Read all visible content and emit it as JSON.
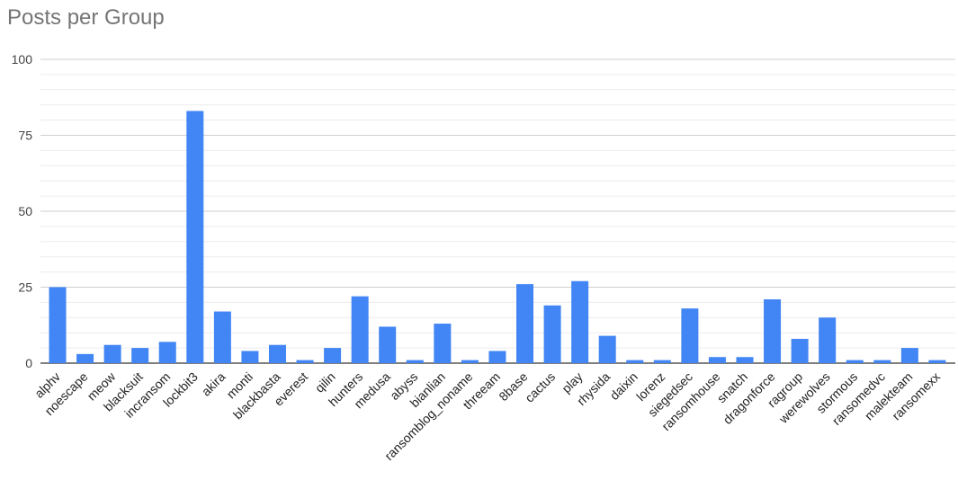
{
  "chart_data": {
    "type": "bar",
    "title": "Posts per Group",
    "xlabel": "",
    "ylabel": "",
    "ylim": [
      0,
      100
    ],
    "yticks": [
      0,
      25,
      50,
      75,
      100
    ],
    "grid": true,
    "bar_color": "#4285f4",
    "categories": [
      "alphv",
      "noescape",
      "meow",
      "blacksuit",
      "incransom",
      "lockbit3",
      "akira",
      "monti",
      "blackbasta",
      "everest",
      "qilin",
      "hunters",
      "medusa",
      "abyss",
      "bianlian",
      "ransomblog_noname",
      "threeam",
      "8base",
      "cactus",
      "play",
      "rhysida",
      "daixin",
      "lorenz",
      "siegedsec",
      "ransomhouse",
      "snatch",
      "dragonforce",
      "ragroup",
      "werewolves",
      "stormous",
      "ransomedvc",
      "malekteam",
      "ransomexx"
    ],
    "values": [
      25,
      3,
      6,
      5,
      7,
      83,
      17,
      4,
      6,
      1,
      5,
      22,
      12,
      1,
      13,
      1,
      4,
      26,
      19,
      27,
      9,
      1,
      1,
      18,
      2,
      2,
      21,
      8,
      15,
      1,
      1,
      5,
      1
    ]
  }
}
